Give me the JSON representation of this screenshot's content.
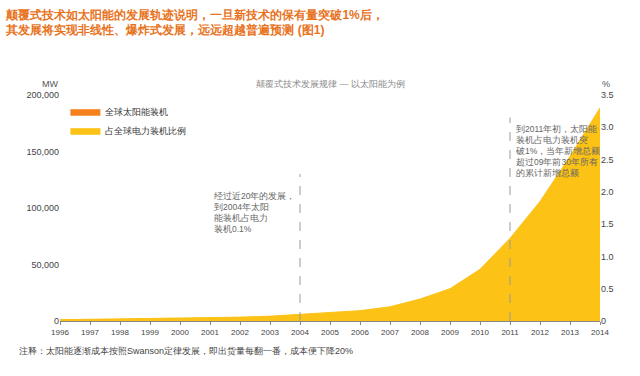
{
  "chart_data": {
    "type": "area",
    "title": [
      "颠覆式技术如太阳能的发展轨迹说明，一旦新技术的保有量突破1%后，",
      "其发展将实现非线性、爆炸式发展，远远超越普遍预测 (图1)"
    ],
    "subtitle": "颠覆式技术发展规律 — 以太阳能为例",
    "y_label": "MW",
    "y2_label": "%",
    "note": "注释：太阳能逐渐成本按照Swanson定律发展，即出货量每翻一番，成本便下降20%",
    "x": [
      1996,
      1997,
      1998,
      1999,
      2000,
      2001,
      2002,
      2003,
      2004,
      2005,
      2006,
      2007,
      2008,
      2009,
      2010,
      2011,
      2012,
      2013,
      2014
    ],
    "series": [
      {
        "name": "全球太阳能装机",
        "color": "#f5821f",
        "axis": "y",
        "values": [
          800,
          1000,
          1200,
          1500,
          1800,
          2200,
          2800,
          3500,
          4500,
          6000,
          7500,
          10500,
          17000,
          25000,
          42000,
          68000,
          100000,
          140000,
          180000
        ]
      },
      {
        "name": "占全球电力装机比例",
        "color": "#fcc216",
        "axis": "y2",
        "values": [
          0.02,
          0.025,
          0.03,
          0.035,
          0.04,
          0.05,
          0.06,
          0.075,
          0.1,
          0.13,
          0.16,
          0.22,
          0.34,
          0.5,
          0.8,
          1.28,
          1.85,
          2.55,
          3.3
        ]
      }
    ],
    "xlim": [
      1996,
      2014
    ],
    "xticks": [
      1996,
      1997,
      1998,
      1999,
      2000,
      2001,
      2002,
      2003,
      2004,
      2005,
      2006,
      2007,
      2008,
      2009,
      2010,
      2011,
      2012,
      2013,
      2014
    ],
    "ylim": [
      0,
      200000
    ],
    "yticks": [
      0,
      {
        "value": 50000,
        "label": "50,000"
      },
      {
        "value": 100000,
        "label": "100,000"
      },
      {
        "value": 150000,
        "label": "150,000"
      },
      {
        "value": 200000,
        "label": "200,000"
      }
    ],
    "y2lim": [
      0,
      3.5
    ],
    "y2ticks": [
      0,
      0.5,
      {
        "value": 1,
        "label": "1.0"
      },
      1.5,
      {
        "value": 2,
        "label": "2.0"
      },
      2.5,
      {
        "value": 3,
        "label": "3.0"
      },
      3.5
    ],
    "grid": false,
    "legend": "top-left",
    "annotations": [
      {
        "x": 2004,
        "y": 75000,
        "side": "left",
        "lines": [
          "经过近20年的发展，",
          "到2004年太阳",
          "能装机占电力",
          "装机0.1%"
        ]
      },
      {
        "x": 2011,
        "y": 125000,
        "side": "right",
        "lines": [
          "到2011年初，太阳能",
          "装机占电力装机突",
          "破1%，当年新增总额",
          "超过09年前30年所有",
          "的累计新增总额"
        ]
      }
    ]
  }
}
